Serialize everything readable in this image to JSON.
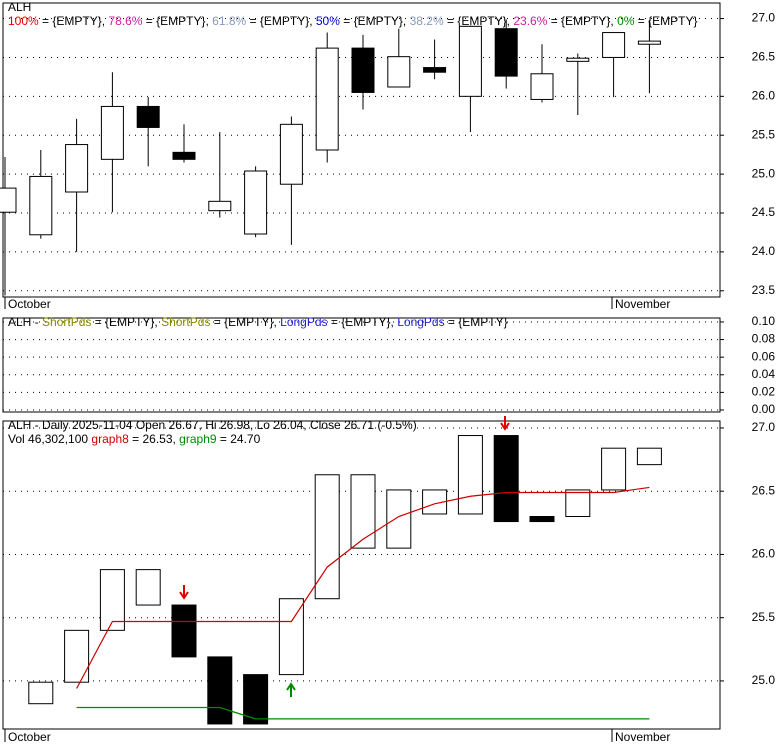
{
  "chart_data": [
    {
      "type": "candlestick",
      "title": "ALH",
      "legend": [
        {
          "name": "100%",
          "color": "#e00000",
          "text": " = {EMPTY}, "
        },
        {
          "name": "78.6%",
          "color": "#d020a0",
          "text": " = {EMPTY}, "
        },
        {
          "name": "61.8%",
          "color": "#8899bb",
          "text": " = {EMPTY}, "
        },
        {
          "name": "50%",
          "color": "#0000cc",
          "text": " = {EMPTY}, "
        },
        {
          "name": "38.2%",
          "color": "#8899bb",
          "text": " = {EMPTY}, "
        },
        {
          "name": "23.6%",
          "color": "#d020a0",
          "text": " = {EMPTY}, "
        },
        {
          "name": "0%",
          "color": "#008800",
          "text": " = {EMPTY}"
        }
      ],
      "categories": [
        null,
        null,
        null,
        null,
        null,
        null,
        null,
        null,
        null,
        null,
        null,
        null,
        null,
        null,
        null,
        null,
        null,
        null,
        null
      ],
      "x_labels": [
        "October",
        "November"
      ],
      "open": [
        24.51,
        24.22,
        24.77,
        25.19,
        25.87,
        25.28,
        24.53,
        24.23,
        24.87,
        25.31,
        26.62,
        26.12,
        26.37,
        26.0,
        26.87,
        25.96,
        26.45,
        26.5,
        26.67
      ],
      "high": [
        25.22,
        25.31,
        25.71,
        26.31,
        25.99,
        25.64,
        25.54,
        25.1,
        25.74,
        26.82,
        26.79,
        26.87,
        26.73,
        26.91,
        26.99,
        26.67,
        26.55,
        26.82,
        26.98
      ],
      "low": [
        23.44,
        24.17,
        24.0,
        24.51,
        25.1,
        25.15,
        24.44,
        24.19,
        24.09,
        25.15,
        25.83,
        26.12,
        26.22,
        25.54,
        26.1,
        25.92,
        25.76,
        25.99,
        26.04
      ],
      "close": [
        24.82,
        24.97,
        25.38,
        25.87,
        25.6,
        25.19,
        24.65,
        25.04,
        25.64,
        26.62,
        26.05,
        26.51,
        26.31,
        26.9,
        26.26,
        26.29,
        26.49,
        26.82,
        26.71
      ],
      "ylim": [
        23.42,
        27.2
      ],
      "yticks": [
        23.5,
        {
          "value": 24,
          "label": "24.0"
        },
        24.5,
        {
          "value": 25,
          "label": "25.0"
        },
        25.5,
        {
          "value": 26,
          "label": "26.0"
        },
        26.5,
        {
          "value": 27,
          "label": "27.0"
        }
      ],
      "grid": true
    },
    {
      "type": "indicator",
      "title": "ALH - ",
      "legend": [
        {
          "name": "ShortPds",
          "color": "#888800",
          "text": " = {EMPTY}, "
        },
        {
          "name": "ShortPds",
          "color": "#888800",
          "text": " = {EMPTY}, "
        },
        {
          "name": "LongPds",
          "color": "#2222cc",
          "text": " = {EMPTY}, "
        },
        {
          "name": "LongPds",
          "color": "#2222cc",
          "text": " = {EMPTY}"
        }
      ],
      "ylim": [
        -0.0023,
        0.1045
      ],
      "yticks": [
        {
          "value": 0,
          "label": "0.00"
        },
        {
          "value": 0.02,
          "label": "0.02"
        },
        {
          "value": 0.04,
          "label": "0.04"
        },
        {
          "value": 0.06,
          "label": "0.06"
        },
        {
          "value": 0.08,
          "label": "0.08"
        },
        {
          "value": 0.1,
          "label": "0.10"
        }
      ],
      "grid": true
    },
    {
      "type": "heikinashi",
      "title": "ALH - Daily 2025-11-04 Open 26.67, Hi 26.98, Lo 26.04, Close 26.71 (-0.5%)",
      "volume_label": "Vol 46,302,100 ",
      "categories": [
        null,
        null,
        null,
        null,
        null,
        null,
        null,
        null,
        null,
        null,
        null,
        null,
        null,
        null,
        null,
        null,
        null,
        null,
        null
      ],
      "x_labels": [
        "October",
        "November"
      ],
      "open": [
        null,
        24.82,
        24.99,
        25.4,
        25.6,
        25.6,
        25.19,
        25.05,
        25.05,
        25.65,
        26.05,
        26.05,
        26.32,
        26.32,
        26.94,
        26.3,
        26.3,
        26.51,
        26.71
      ],
      "close": [
        null,
        24.99,
        25.4,
        25.88,
        25.88,
        25.19,
        24.66,
        24.66,
        25.65,
        26.63,
        26.63,
        26.51,
        26.51,
        26.94,
        26.26,
        26.26,
        26.51,
        26.84,
        26.84
      ],
      "series": [
        {
          "name": "graph8",
          "color": "#cc0000",
          "value_label": " = 26.53, ",
          "values": [
            null,
            null,
            24.94,
            25.47,
            25.47,
            25.47,
            25.47,
            25.47,
            25.47,
            25.9,
            26.12,
            26.3,
            26.4,
            26.46,
            26.49,
            26.49,
            26.49,
            26.49,
            26.53
          ]
        },
        {
          "name": "graph9",
          "color": "#008800",
          "value_label": " = 24.70",
          "values": [
            null,
            null,
            24.79,
            24.79,
            24.79,
            24.79,
            24.79,
            24.7,
            24.7,
            24.7,
            24.7,
            24.7,
            24.7,
            24.7,
            24.7,
            24.7,
            24.7,
            24.7,
            24.7
          ]
        }
      ],
      "ylim": [
        24.62,
        27.055
      ],
      "yticks": [
        {
          "value": 25,
          "label": "25.0"
        },
        25.5,
        {
          "value": 26,
          "label": "26.0"
        },
        26.5,
        {
          "value": 27,
          "label": "27.0"
        }
      ],
      "grid": true
    }
  ]
}
